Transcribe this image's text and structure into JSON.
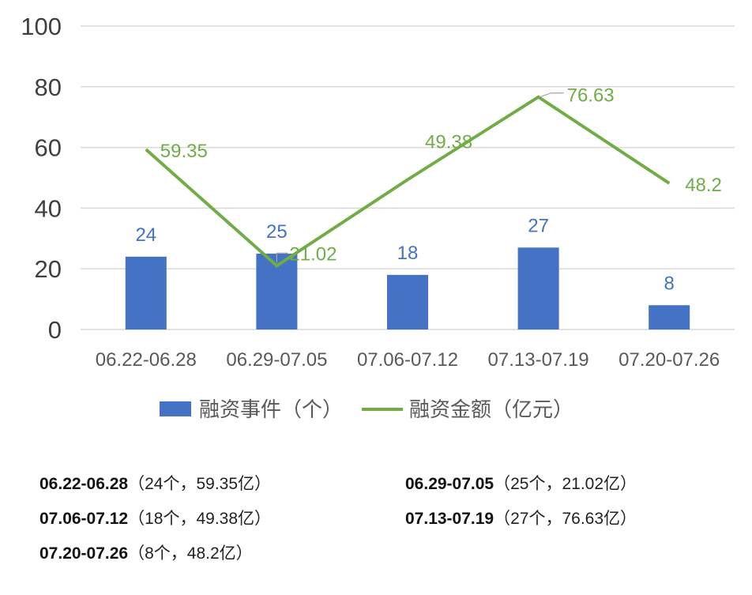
{
  "chart_data": {
    "type": "bar+line",
    "categories": [
      "06.22-06.28",
      "06.29-07.05",
      "07.06-07.12",
      "07.13-07.19",
      "07.20-07.26"
    ],
    "series": [
      {
        "name": "融资事件（个）",
        "type": "bar",
        "color": "#4472c4",
        "values": [
          24,
          25,
          18,
          27,
          8
        ]
      },
      {
        "name": "融资金额（亿元）",
        "type": "line",
        "color": "#70ad47",
        "values": [
          59.35,
          21.02,
          49.38,
          76.63,
          48.2
        ]
      }
    ],
    "bar_labels": [
      "24",
      "25",
      "18",
      "27",
      "8"
    ],
    "line_labels": [
      "59.35",
      "21.02",
      "49.38",
      "76.63",
      "48.2"
    ],
    "y_ticks": [
      "0",
      "20",
      "40",
      "60",
      "80",
      "100"
    ],
    "ylim": [
      0,
      100
    ],
    "grid": true,
    "legend_position": "bottom"
  },
  "summary": [
    {
      "period": "06.22-06.28",
      "detail": "（24个，59.35亿）"
    },
    {
      "period": "06.29-07.05",
      "detail": "（25个，21.02亿）"
    },
    {
      "period": "07.06-07.12",
      "detail": "（18个，49.38亿）"
    },
    {
      "period": "07.13-07.19",
      "detail": "（27个，76.63亿）"
    },
    {
      "period": "07.20-07.26",
      "detail": "（8个，48.2亿）"
    }
  ]
}
